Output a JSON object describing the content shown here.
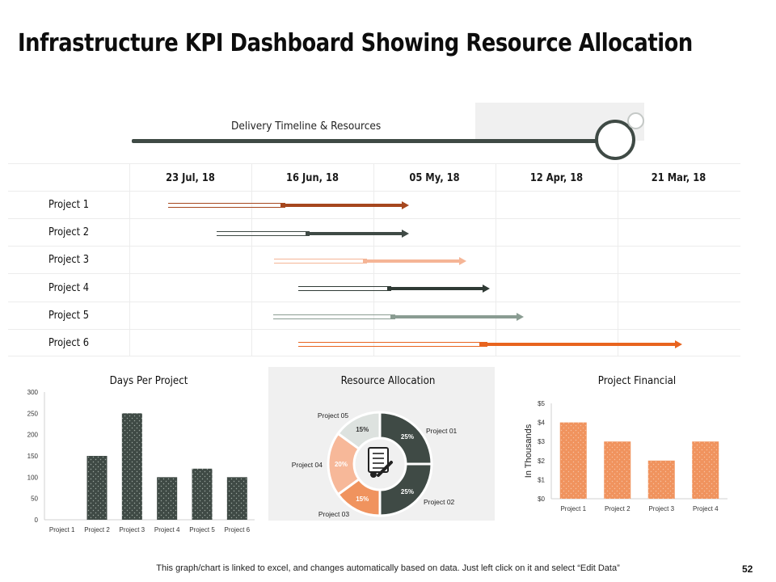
{
  "title": "Infrastructure KPI Dashboard Showing Resource Allocation",
  "timeline": {
    "title": "Delivery Timeline & Resources",
    "dates": [
      "23 Jul, 18",
      "16 Jun, 18",
      "05 My, 18",
      "12 Apr, 18",
      "21 Mar, 18"
    ],
    "projects": [
      {
        "name": "Project 1",
        "color": "#a6471e"
      },
      {
        "name": "Project 2",
        "color": "#3f4a45"
      },
      {
        "name": "Project 3",
        "color": "#f5b596"
      },
      {
        "name": "Project 4",
        "color": "#2f3a35"
      },
      {
        "name": "Project 5",
        "color": "#8a9c92"
      },
      {
        "name": "Project 6",
        "color": "#e8641f"
      }
    ]
  },
  "chart_data": [
    {
      "type": "bar",
      "title": "Days Per Project",
      "categories": [
        "Project 1",
        "Project 2",
        "Project 3",
        "Project 4",
        "Project 5",
        "Project 6"
      ],
      "values": [
        0,
        150,
        250,
        100,
        120,
        100
      ],
      "ylim": [
        0,
        300
      ],
      "yticks": [
        "0",
        "50",
        "100",
        "150",
        "200",
        "250",
        "300"
      ],
      "color": "#3f4a45"
    },
    {
      "type": "pie",
      "title": "Resource Allocation",
      "labels": [
        "Project 01",
        "Project 02",
        "Project 03",
        "Project 04",
        "Project 05"
      ],
      "values": [
        25,
        25,
        15,
        20,
        15
      ],
      "value_labels": [
        "25%",
        "25%",
        "15%",
        "20%",
        "15%"
      ],
      "colors": [
        "#3f4a45",
        "#3f4a45",
        "#f0935e",
        "#f7b899",
        "#dde2df"
      ]
    },
    {
      "type": "bar",
      "title": "Project Financial",
      "ylabel": "In Thousands",
      "categories": [
        "Project 1",
        "Project 2",
        "Project 3",
        "Project 4"
      ],
      "values": [
        4,
        3,
        2,
        3
      ],
      "ylim": [
        0,
        5
      ],
      "yticks": [
        "$0",
        "$1",
        "$2",
        "$3",
        "$4",
        "$5"
      ],
      "color": "#f0935e"
    }
  ],
  "footer": "This graph/chart is linked to excel, and changes automatically based on data. Just left click on it and select “Edit Data”",
  "page_number": "52"
}
